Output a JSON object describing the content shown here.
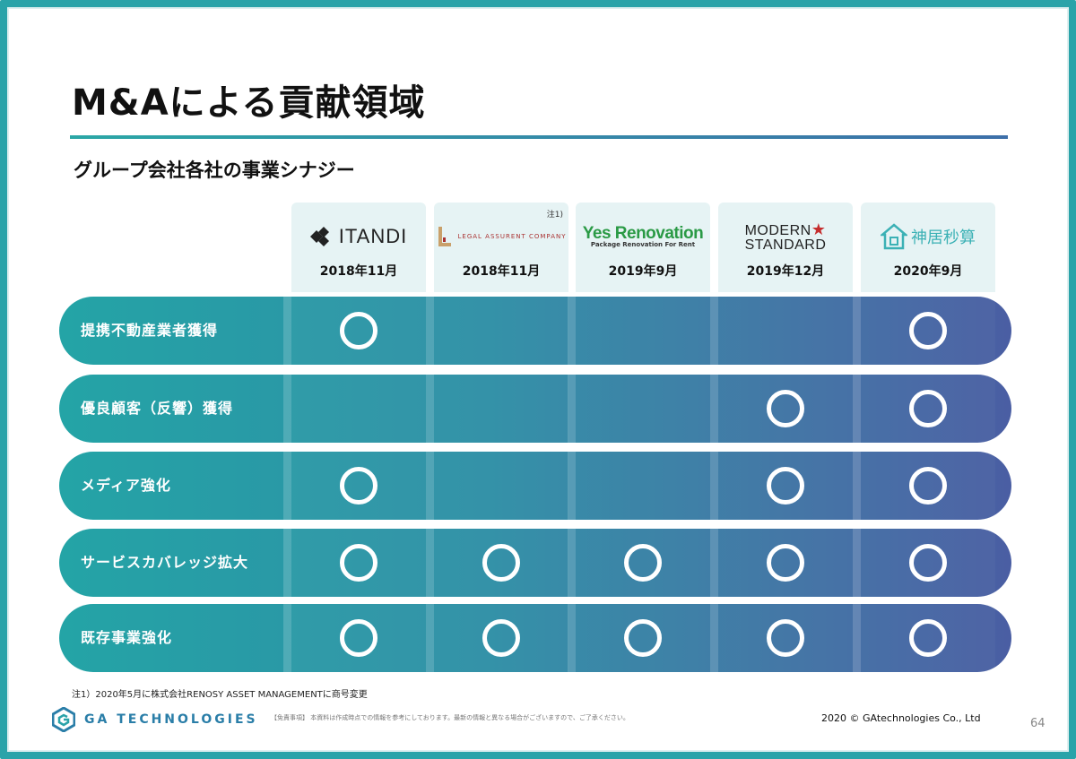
{
  "title": "M&Aによる貢献領域",
  "subtitle": "グループ会社各社の事業シナジー",
  "companies": [
    {
      "name": "ITANDI",
      "date": "2018年11月",
      "note": ""
    },
    {
      "name": "LEGAL ASSURENT COMPANY",
      "date": "2018年11月",
      "note": "注1)"
    },
    {
      "name": "Yes Renovation",
      "tagline": "Package Renovation For Rent",
      "date": "2019年9月",
      "note": ""
    },
    {
      "name_line1": "MODERN",
      "name_line2": "STANDARD",
      "date": "2019年12月",
      "note": ""
    },
    {
      "name": "神居秒算",
      "date": "2020年9月",
      "note": ""
    }
  ],
  "rows": [
    {
      "label": "提携不動産業者獲得",
      "marks": [
        true,
        false,
        false,
        false,
        true
      ]
    },
    {
      "label": "優良顧客（反響）獲得",
      "marks": [
        false,
        false,
        false,
        true,
        true
      ]
    },
    {
      "label": "メディア強化",
      "marks": [
        true,
        false,
        false,
        true,
        true
      ]
    },
    {
      "label": "サービスカバレッジ拡大",
      "marks": [
        true,
        true,
        true,
        true,
        true
      ]
    },
    {
      "label": "既存事業強化",
      "marks": [
        true,
        true,
        true,
        true,
        true
      ]
    }
  ],
  "footnote": "注1）2020年5月に株式会社RENOSY ASSET MANAGEMENTに商号変更",
  "brand_name": "GA TECHNOLOGIES",
  "disclaimer": "【免責事項】 本資料は作成時点での情報を参考にしております。最新の情報と異なる場合がございますので、ご了承ください。",
  "copyright": "2020 © GAtechnologies Co., Ltd",
  "page_number": "64",
  "colors": {
    "accent_teal": "#24a4a6",
    "accent_blue": "#4a5ea3",
    "header_bg": "#e6f3f4"
  }
}
